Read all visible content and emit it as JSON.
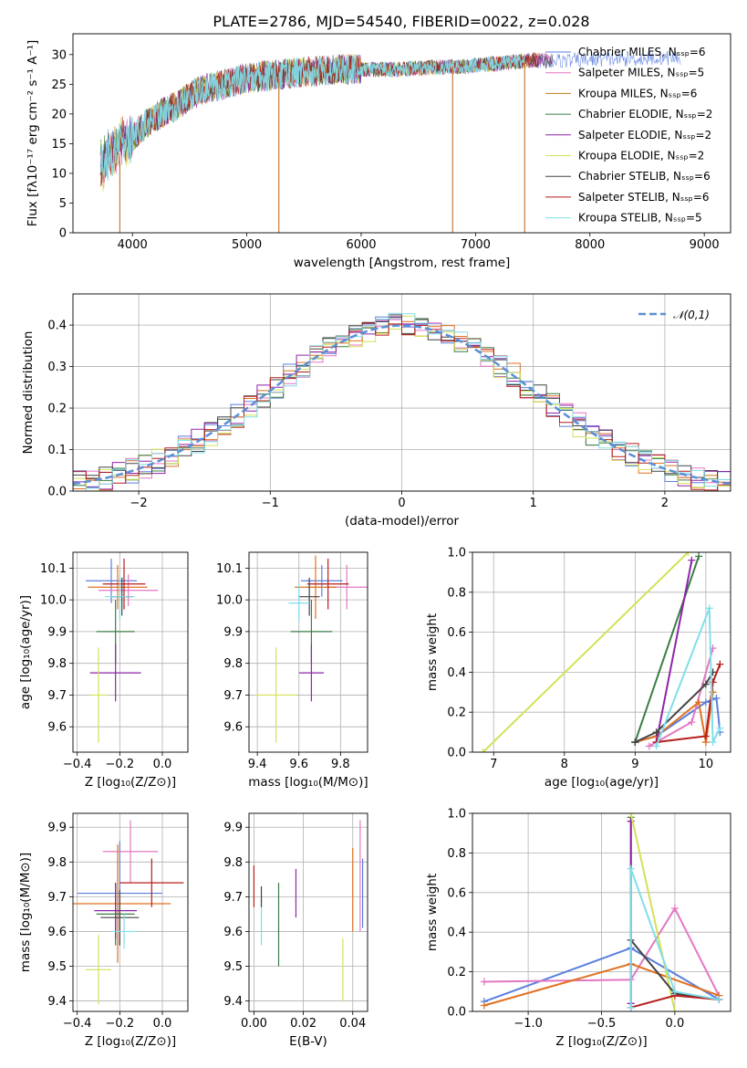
{
  "figure": {
    "title": "PLATE=2786, MJD=54540, FIBERID=0022, z=0.028"
  },
  "chart_data": [
    {
      "id": "spectrum",
      "type": "line",
      "xlabel": "wavelength [Angstrom, rest frame]",
      "ylabel": "Flux [fλ10⁻¹⁷ erg cm⁻² s⁻¹ A⁻¹]",
      "xlim": [
        3480,
        9230
      ],
      "ylim": [
        0,
        33.5
      ],
      "xticks": [
        4000,
        5000,
        6000,
        7000,
        8000,
        9000
      ],
      "yticks": [
        0,
        5,
        10,
        15,
        20,
        25,
        30
      ],
      "continuum": {
        "x": [
          3720,
          3800,
          3900,
          4000,
          4100,
          4200,
          4300,
          4400,
          4500,
          4600,
          4800,
          5000,
          5200,
          5500,
          5800,
          6000,
          6300,
          6600,
          6900,
          7200,
          7500,
          7800,
          8100,
          8400,
          8800
        ],
        "y": [
          11,
          13,
          15,
          16,
          18,
          19.5,
          20.5,
          21.5,
          23,
          24,
          25,
          26,
          26.5,
          27,
          27.5,
          27.5,
          27.5,
          27.8,
          28,
          28.5,
          29,
          29,
          29.2,
          29.3,
          29.5
        ]
      },
      "dropouts": [
        {
          "x": 3890,
          "y_from": 12,
          "y_to": 0
        },
        {
          "x": 5280,
          "y_from": 26,
          "y_to": 0
        },
        {
          "x": 6800,
          "y_from": 28,
          "y_to": 0
        },
        {
          "x": 7430,
          "y_from": 29,
          "y_to": 0
        }
      ],
      "legend_position": "top-right",
      "series": [
        {
          "name": "Chabrier MILES, Nₛₛₚ=6",
          "color": "#5b7fde"
        },
        {
          "name": "Salpeter MILES, Nₛₛₚ=5",
          "color": "#e377c2"
        },
        {
          "name": "Kroupa MILES, Nₛₛₚ=6",
          "color": "#c07a20"
        },
        {
          "name": "Chabrier ELODIE, Nₛₛₚ=2",
          "color": "#3a7d44"
        },
        {
          "name": "Salpeter ELODIE, Nₛₛₚ=2",
          "color": "#8e24aa"
        },
        {
          "name": "Kroupa ELODIE, Nₛₛₚ=2",
          "color": "#d4e157"
        },
        {
          "name": "Chabrier STELIB, Nₛₛₚ=6",
          "color": "#444444"
        },
        {
          "name": "Salpeter STELIB, Nₛₛₚ=6",
          "color": "#b71c1c"
        },
        {
          "name": "Kroupa STELIB, Nₛₛₚ=5",
          "color": "#80deea"
        }
      ]
    },
    {
      "id": "residuals",
      "type": "histogram",
      "xlabel": "(data-model)/error",
      "ylabel": "Normed distribution",
      "xlim": [
        -2.5,
        2.5
      ],
      "ylim": [
        0,
        0.475
      ],
      "xticks": [
        -2,
        -1,
        0,
        1,
        2
      ],
      "yticks": [
        0.0,
        0.1,
        0.2,
        0.3,
        0.4
      ],
      "grid": true,
      "bin_width": 0.1,
      "reference": {
        "name": "𝒩(0,1)",
        "mean": 0,
        "sigma": 1,
        "color": "#5b8fd6"
      },
      "legend_position": "top-right"
    },
    {
      "id": "age-vs-Z",
      "type": "errorbar",
      "xlabel": "Z [log₁₀(Z/Z⊙)]",
      "ylabel": "age  [log₁₀(age/yr)]",
      "xlim": [
        -0.42,
        0.12
      ],
      "ylim": [
        9.52,
        10.15
      ],
      "xticks": [
        -0.4,
        -0.2,
        0.0
      ],
      "yticks": [
        9.6,
        9.7,
        9.8,
        9.9,
        10.0,
        10.1
      ],
      "points": [
        {
          "x": -0.24,
          "xerr": 0.12,
          "y": 10.06,
          "yerr": 0.07,
          "color": "#5b7fde"
        },
        {
          "x": -0.16,
          "xerr": 0.14,
          "y": 10.03,
          "yerr": 0.05,
          "color": "#e377c2"
        },
        {
          "x": -0.21,
          "xerr": 0.14,
          "y": 10.04,
          "yerr": 0.07,
          "color": "#e07020"
        },
        {
          "x": -0.22,
          "xerr": 0.09,
          "y": 9.9,
          "yerr": 0.1,
          "color": "#3a7d44"
        },
        {
          "x": -0.22,
          "xerr": 0.12,
          "y": 9.77,
          "yerr": 0.09,
          "color": "#8e24aa"
        },
        {
          "x": -0.3,
          "xerr": 0.04,
          "y": 9.7,
          "yerr": 0.15,
          "color": "#d4e157"
        },
        {
          "x": -0.19,
          "xerr": 0.05,
          "y": 10.01,
          "yerr": 0.06,
          "color": "#444444"
        },
        {
          "x": -0.18,
          "xerr": 0.1,
          "y": 10.05,
          "yerr": 0.08,
          "color": "#b71c1c"
        },
        {
          "x": -0.2,
          "xerr": 0.07,
          "y": 10.01,
          "yerr": 0.07,
          "color": "#80deea"
        }
      ]
    },
    {
      "id": "age-vs-mass",
      "type": "errorbar",
      "xlabel": "mass [log₁₀(M/M⊙)]",
      "ylabel": "",
      "xlim": [
        9.36,
        9.93
      ],
      "ylim": [
        9.52,
        10.15
      ],
      "xticks": [
        9.4,
        9.6,
        9.8
      ],
      "yticks": [
        9.6,
        9.7,
        9.8,
        9.9,
        10.0,
        10.1
      ],
      "points": [
        {
          "x": 9.71,
          "xerr": 0.1,
          "y": 10.06,
          "yerr": 0.05,
          "color": "#5b7fde"
        },
        {
          "x": 9.83,
          "xerr": 0.1,
          "y": 10.04,
          "yerr": 0.07,
          "color": "#e377c2"
        },
        {
          "x": 9.68,
          "xerr": 0.1,
          "y": 10.04,
          "yerr": 0.1,
          "color": "#e07020"
        },
        {
          "x": 9.66,
          "xerr": 0.1,
          "y": 9.9,
          "yerr": 0.1,
          "color": "#3a7d44"
        },
        {
          "x": 9.66,
          "xerr": 0.06,
          "y": 9.77,
          "yerr": 0.09,
          "color": "#8e24aa"
        },
        {
          "x": 9.49,
          "xerr": 0.1,
          "y": 9.7,
          "yerr": 0.15,
          "color": "#d4e157"
        },
        {
          "x": 9.65,
          "xerr": 0.05,
          "y": 10.01,
          "yerr": 0.06,
          "color": "#444444"
        },
        {
          "x": 9.74,
          "xerr": 0.1,
          "y": 10.05,
          "yerr": 0.08,
          "color": "#b71c1c"
        },
        {
          "x": 9.6,
          "xerr": 0.05,
          "y": 9.99,
          "yerr": 0.06,
          "color": "#80deea"
        }
      ]
    },
    {
      "id": "weight-vs-age",
      "type": "line",
      "xlabel": "age  [log₁₀(age/yr)]",
      "ylabel": "mass weight",
      "xlim": [
        6.7,
        10.35
      ],
      "ylim": [
        0,
        1
      ],
      "xticks": [
        7,
        8,
        9,
        10
      ],
      "yticks": [
        0.0,
        0.2,
        0.4,
        0.6,
        0.8,
        1.0
      ],
      "grid": true,
      "series": [
        {
          "color": "#5b7fde",
          "x": [
            9.0,
            9.3,
            10.0,
            10.15,
            10.2
          ],
          "y": [
            0.05,
            0.08,
            0.25,
            0.27,
            0.1
          ]
        },
        {
          "color": "#e377c2",
          "x": [
            9.2,
            9.8,
            10.1
          ],
          "y": [
            0.03,
            0.15,
            0.52
          ]
        },
        {
          "color": "#e07020",
          "x": [
            9.0,
            9.3,
            9.9,
            10.0,
            10.1
          ],
          "y": [
            0.05,
            0.08,
            0.25,
            0.05,
            0.3
          ]
        },
        {
          "color": "#3a7d44",
          "x": [
            9.0,
            9.9
          ],
          "y": [
            0.05,
            0.98
          ]
        },
        {
          "color": "#8e24aa",
          "x": [
            9.3,
            9.8
          ],
          "y": [
            0.05,
            0.96
          ]
        },
        {
          "color": "#d4e157",
          "x": [
            6.85,
            9.75
          ],
          "y": [
            0.0,
            1.0
          ]
        },
        {
          "color": "#444444",
          "x": [
            9.0,
            9.3,
            10.0,
            10.1
          ],
          "y": [
            0.05,
            0.1,
            0.34,
            0.4
          ]
        },
        {
          "color": "#b71c1c",
          "x": [
            9.3,
            10.0,
            10.1,
            10.2
          ],
          "y": [
            0.05,
            0.08,
            0.35,
            0.44
          ]
        },
        {
          "color": "#80deea",
          "x": [
            9.3,
            10.05,
            10.1,
            10.2
          ],
          "y": [
            0.03,
            0.72,
            0.05,
            0.12
          ]
        }
      ]
    },
    {
      "id": "mass-vs-Z",
      "type": "errorbar",
      "xlabel": "Z [log₁₀(Z/Z⊙)]",
      "ylabel": "mass [log₁₀(M/M⊙)]",
      "xlim": [
        -0.42,
        0.12
      ],
      "ylim": [
        9.37,
        9.94
      ],
      "xticks": [
        -0.4,
        -0.2,
        0.0
      ],
      "yticks": [
        9.4,
        9.5,
        9.6,
        9.7,
        9.8,
        9.9
      ],
      "points": [
        {
          "x": -0.2,
          "xerr": 0.2,
          "y": 9.71,
          "yerr": 0.15,
          "color": "#5b7fde"
        },
        {
          "x": -0.15,
          "xerr": 0.13,
          "y": 9.83,
          "yerr": 0.09,
          "color": "#e377c2"
        },
        {
          "x": -0.21,
          "xerr": 0.25,
          "y": 9.68,
          "yerr": 0.17,
          "color": "#e07020"
        },
        {
          "x": -0.22,
          "xerr": 0.09,
          "y": 9.65,
          "yerr": 0.09,
          "color": "#3a7d44"
        },
        {
          "x": -0.22,
          "xerr": 0.1,
          "y": 9.66,
          "yerr": 0.08,
          "color": "#8e24aa"
        },
        {
          "x": -0.3,
          "xerr": 0.06,
          "y": 9.49,
          "yerr": 0.1,
          "color": "#d4e157"
        },
        {
          "x": -0.2,
          "xerr": 0.09,
          "y": 9.64,
          "yerr": 0.08,
          "color": "#444444"
        },
        {
          "x": -0.05,
          "xerr": 0.15,
          "y": 9.74,
          "yerr": 0.07,
          "color": "#b71c1c"
        },
        {
          "x": -0.18,
          "xerr": 0.06,
          "y": 9.6,
          "yerr": 0.05,
          "color": "#80deea"
        }
      ]
    },
    {
      "id": "mass-vs-ebv",
      "type": "errorbar",
      "xlabel": "E(B-V)",
      "ylabel": "",
      "xlim": [
        -0.002,
        0.046
      ],
      "ylim": [
        9.37,
        9.94
      ],
      "xticks": [
        0.0,
        0.02,
        0.04
      ],
      "yticks": [
        9.4,
        9.5,
        9.6,
        9.7,
        9.8,
        9.9
      ],
      "points": [
        {
          "x": 0.0,
          "xerr": 0,
          "y": 9.73,
          "yerr": 0.06,
          "color": "#b71c1c"
        },
        {
          "x": 0.003,
          "xerr": 0,
          "y": 9.63,
          "yerr": 0.07,
          "color": "#80deea"
        },
        {
          "x": 0.003,
          "xerr": 0,
          "y": 9.7,
          "yerr": 0.03,
          "color": "#444444"
        },
        {
          "x": 0.01,
          "xerr": 0,
          "y": 9.62,
          "yerr": 0.12,
          "color": "#3a7d44"
        },
        {
          "x": 0.017,
          "xerr": 0,
          "y": 9.71,
          "yerr": 0.07,
          "color": "#8e24aa"
        },
        {
          "x": 0.036,
          "xerr": 0,
          "y": 9.49,
          "yerr": 0.09,
          "color": "#d4e157"
        },
        {
          "x": 0.04,
          "xerr": 0,
          "y": 9.72,
          "yerr": 0.12,
          "color": "#e07020"
        },
        {
          "x": 0.043,
          "xerr": 0,
          "y": 9.76,
          "yerr": 0.16,
          "color": "#e377c2"
        },
        {
          "x": 0.044,
          "xerr": 0,
          "y": 9.71,
          "yerr": 0.1,
          "color": "#5b7fde"
        }
      ]
    },
    {
      "id": "weight-vs-Z",
      "type": "line",
      "xlabel": "Z [log₁₀(Z/Z⊙)]",
      "ylabel": "mass weight",
      "xlim": [
        -1.38,
        0.38
      ],
      "ylim": [
        0,
        1
      ],
      "xticks": [
        -1.0,
        -0.5,
        0.0
      ],
      "yticks": [
        0.0,
        0.2,
        0.4,
        0.6,
        0.8,
        1.0
      ],
      "grid": true,
      "series": [
        {
          "color": "#5b7fde",
          "x": [
            -1.3,
            -0.3,
            0.3
          ],
          "y": [
            0.05,
            0.32,
            0.06
          ]
        },
        {
          "color": "#e377c2",
          "x": [
            -1.3,
            -0.3,
            0.0,
            0.3
          ],
          "y": [
            0.15,
            0.16,
            0.52,
            0.08
          ]
        },
        {
          "color": "#e07020",
          "x": [
            -1.3,
            -0.3,
            0.3
          ],
          "y": [
            0.03,
            0.24,
            0.08
          ]
        },
        {
          "color": "#3a7d44",
          "x": [
            -0.3,
            -0.3
          ],
          "y": [
            0.02,
            0.98
          ]
        },
        {
          "color": "#8e24aa",
          "x": [
            -0.3,
            -0.3
          ],
          "y": [
            0.04,
            0.96
          ]
        },
        {
          "color": "#d4e157",
          "x": [
            -0.3,
            0.0
          ],
          "y": [
            1.0,
            0.0
          ]
        },
        {
          "color": "#444444",
          "x": [
            -0.3,
            0.0,
            0.3
          ],
          "y": [
            0.36,
            0.09,
            0.06
          ]
        },
        {
          "color": "#b71c1c",
          "x": [
            -0.3,
            0.0,
            0.3
          ],
          "y": [
            0.02,
            0.08,
            0.06
          ]
        },
        {
          "color": "#80deea",
          "x": [
            -0.3,
            -0.3,
            0.0,
            0.3
          ],
          "y": [
            0.02,
            0.72,
            0.1,
            0.06
          ]
        }
      ]
    }
  ]
}
